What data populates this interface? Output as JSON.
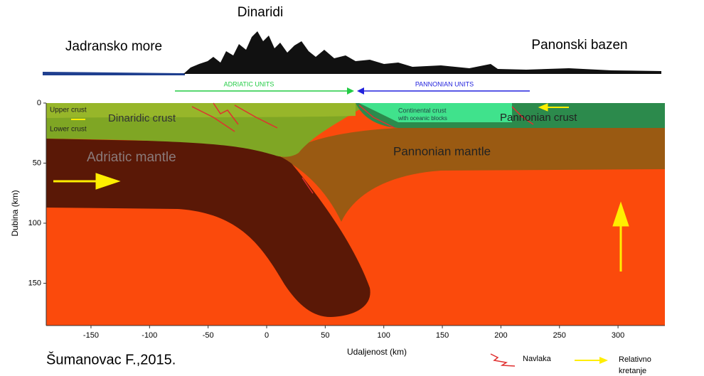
{
  "header": {
    "title": "Dinaridi",
    "left": "Jadransko more",
    "right": "Panonski bazen"
  },
  "units": {
    "adriatic": "ADRIATIC UNITS",
    "pannonian": "PANNONIAN UNITS"
  },
  "layers": {
    "upper_crust": "Upper crust",
    "lower_crust": "Lower crust",
    "dinaridic_crust": "Dinaridic crust",
    "continental_crust": [
      "Continental crust",
      "with oceanic blocks"
    ],
    "pannonian_crust": "Pannonian crust",
    "adriatic_mantle": "Adriatic mantle",
    "pannonian_mantle": "Pannonian mantle"
  },
  "axes": {
    "x": {
      "label": "Udaljenost (km)",
      "ticks": [
        -150,
        -100,
        -50,
        0,
        50,
        100,
        150,
        200,
        250,
        300
      ]
    },
    "y": {
      "label": "Dubina (km)",
      "ticks": [
        0,
        50,
        100,
        150
      ]
    }
  },
  "legend": {
    "thrust": "Navlaka",
    "motion": [
      "Relativno",
      "kretanje"
    ]
  },
  "source": "Šumanovac F.,2015."
}
